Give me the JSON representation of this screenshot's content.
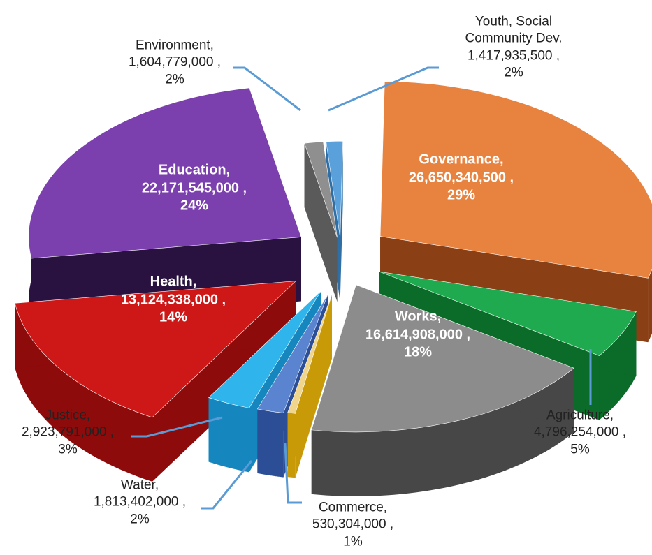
{
  "chart_data": {
    "type": "pie",
    "style": "3d-exploded",
    "legend": "none",
    "slices": [
      {
        "name": "Governance",
        "value": 26650340500,
        "display_value": "26,650,340,500 ,",
        "percent": "29%",
        "color": "#E8823F",
        "side": "#8A3F14",
        "label_inside": true
      },
      {
        "name": "Agriculture",
        "value": 4796254000,
        "display_value": "4,796,254,000 ,",
        "percent": "5%",
        "color": "#1FAA4F",
        "side": "#0B6B28",
        "label_inside": false
      },
      {
        "name": "Works",
        "value": 16614908000,
        "display_value": "16,614,908,000 ,",
        "percent": "18%",
        "color": "#8C8C8C",
        "side": "#474747",
        "label_inside": true
      },
      {
        "name": "Commerce",
        "value": 530304000,
        "display_value": "530,304,000 ,",
        "percent": "1%",
        "color": "#F0D58C",
        "side": "#C89A08",
        "label_inside": false
      },
      {
        "name": "Water",
        "value": 1813402000,
        "display_value": "1,813,402,000 ,",
        "percent": "2%",
        "color": "#5B84D0",
        "side": "#2C4E96",
        "label_inside": false
      },
      {
        "name": "Justice",
        "value": 2923791000,
        "display_value": "2,923,791,000 ,",
        "percent": "3%",
        "color": "#2FB4EC",
        "side": "#1587BE",
        "label_inside": false
      },
      {
        "name": "Health",
        "value": 13124338000,
        "display_value": "13,124,338,000 ,",
        "percent": "14%",
        "color": "#CE1717",
        "side": "#8E0B0B",
        "label_inside": true
      },
      {
        "name": "Education",
        "value": 22171545000,
        "display_value": "22,171,545,000 ,",
        "percent": "24%",
        "color": "#7B3FAE",
        "side": "#2A1240",
        "label_inside": true
      },
      {
        "name": "Environment",
        "value": 1604779000,
        "display_value": "1,604,779,000 ,",
        "percent": "2%",
        "color": "#8F8F8F",
        "side": "#5A5A5A",
        "label_inside": false
      },
      {
        "name": "Youth, Social Community Dev.",
        "value": 1417935500,
        "display_value": "1,417,935,500 ,",
        "percent": "2%",
        "color": "#5AA0DA",
        "side": "#2F6FA6",
        "label_inside": false
      }
    ],
    "label_lines": {
      "Environment": [
        "Environment,",
        "1,604,779,000 ,",
        "2%"
      ],
      "Youth, Social Community Dev.": [
        "Youth, Social",
        "Community Dev.",
        "1,417,935,500 ,",
        "2%"
      ],
      "Governance": [
        "Governance,",
        "26,650,340,500 ,",
        "29%"
      ],
      "Education": [
        "Education,",
        "22,171,545,000 ,",
        "24%"
      ],
      "Health": [
        "Health,",
        "13,124,338,000 ,",
        "14%"
      ],
      "Works": [
        "Works,",
        "16,614,908,000 ,",
        "18%"
      ],
      "Agriculture": [
        "Agriculture,",
        "4,796,254,000 ,",
        "5%"
      ],
      "Justice": [
        "Justice,",
        "2,923,791,000 ,",
        "3%"
      ],
      "Water": [
        "Water,",
        "1,813,402,000 ,",
        "2%"
      ],
      "Commerce": [
        "Commerce,",
        "530,304,000 ,",
        "1%"
      ]
    },
    "leader_color": "#5B9BD5"
  }
}
